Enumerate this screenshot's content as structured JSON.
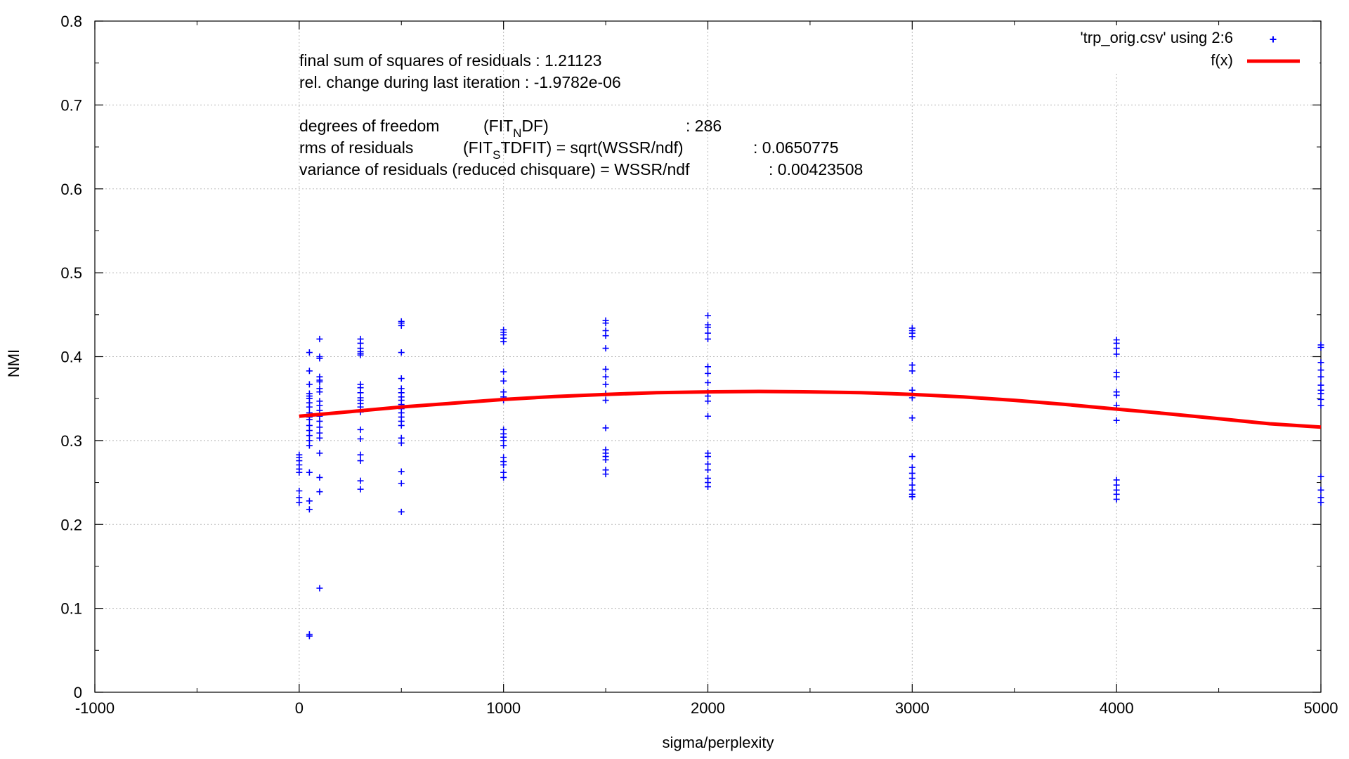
{
  "chart_data": {
    "type": "scatter",
    "xlabel": "sigma/perplexity",
    "ylabel": "NMI",
    "xlim": [
      -1000,
      5000
    ],
    "ylim": [
      0,
      0.8
    ],
    "x_ticks": [
      -1000,
      0,
      1000,
      2000,
      3000,
      4000,
      5000
    ],
    "x_minor_ticks": [
      -500,
      500,
      1500,
      2500,
      3500,
      4500
    ],
    "y_ticks": [
      "0",
      "0.1",
      "0.2",
      "0.3",
      "0.4",
      "0.5",
      "0.6",
      "0.7",
      "0.8"
    ],
    "y_minor_ticks": [
      0.05,
      0.15,
      0.25,
      0.35,
      0.45,
      0.55,
      0.65,
      0.75
    ],
    "grid": true,
    "legend_position": "top-right",
    "fit_info": {
      "line1": "final sum of squares of residuals : 1.21123",
      "line2": "rel. change during last iteration : -1.9782e-06",
      "dof_label": "degrees of freedom",
      "dof_func_main": "(FIT",
      "dof_func_sub": "N",
      "dof_func_rest": "DF)",
      "dof_value": ": 286",
      "rms_label": "rms of residuals",
      "rms_func_main": "(FIT",
      "rms_func_sub": "S",
      "rms_func_rest": "TDFIT) = sqrt(WSSR/ndf)",
      "rms_value": ": 0.0650775",
      "var_line": "variance of residuals (reduced chisquare) = WSSR/ndf",
      "var_value": ": 0.00423508"
    },
    "series": [
      {
        "name": "'trp_orig.csv' using 2:6",
        "color": "#0000ff",
        "marker": "plus",
        "points": [
          [
            0,
            0.283
          ],
          [
            0,
            0.28
          ],
          [
            0,
            0.276
          ],
          [
            0,
            0.271
          ],
          [
            0,
            0.266
          ],
          [
            0,
            0.262
          ],
          [
            0,
            0.24
          ],
          [
            0,
            0.232
          ],
          [
            0,
            0.226
          ],
          [
            50,
            0.405
          ],
          [
            50,
            0.383
          ],
          [
            50,
            0.367
          ],
          [
            50,
            0.356
          ],
          [
            50,
            0.353
          ],
          [
            50,
            0.35
          ],
          [
            50,
            0.345
          ],
          [
            50,
            0.34
          ],
          [
            50,
            0.333
          ],
          [
            50,
            0.328
          ],
          [
            50,
            0.325
          ],
          [
            50,
            0.318
          ],
          [
            50,
            0.312
          ],
          [
            50,
            0.306
          ],
          [
            50,
            0.3
          ],
          [
            50,
            0.294
          ],
          [
            50,
            0.262
          ],
          [
            50,
            0.228
          ],
          [
            50,
            0.218
          ],
          [
            50,
            0.069
          ],
          [
            50,
            0.067
          ],
          [
            100,
            0.421
          ],
          [
            100,
            0.4
          ],
          [
            100,
            0.398
          ],
          [
            100,
            0.376
          ],
          [
            100,
            0.372
          ],
          [
            100,
            0.37
          ],
          [
            100,
            0.362
          ],
          [
            100,
            0.358
          ],
          [
            100,
            0.347
          ],
          [
            100,
            0.342
          ],
          [
            100,
            0.336
          ],
          [
            100,
            0.329
          ],
          [
            100,
            0.323
          ],
          [
            100,
            0.316
          ],
          [
            100,
            0.309
          ],
          [
            100,
            0.303
          ],
          [
            100,
            0.285
          ],
          [
            100,
            0.256
          ],
          [
            100,
            0.239
          ],
          [
            100,
            0.124
          ],
          [
            300,
            0.421
          ],
          [
            300,
            0.416
          ],
          [
            300,
            0.41
          ],
          [
            300,
            0.406
          ],
          [
            300,
            0.404
          ],
          [
            300,
            0.402
          ],
          [
            300,
            0.367
          ],
          [
            300,
            0.363
          ],
          [
            300,
            0.357
          ],
          [
            300,
            0.351
          ],
          [
            300,
            0.348
          ],
          [
            300,
            0.344
          ],
          [
            300,
            0.34
          ],
          [
            300,
            0.334
          ],
          [
            300,
            0.313
          ],
          [
            300,
            0.302
          ],
          [
            300,
            0.283
          ],
          [
            300,
            0.276
          ],
          [
            300,
            0.252
          ],
          [
            300,
            0.242
          ],
          [
            500,
            0.442
          ],
          [
            500,
            0.44
          ],
          [
            500,
            0.437
          ],
          [
            500,
            0.405
          ],
          [
            500,
            0.374
          ],
          [
            500,
            0.362
          ],
          [
            500,
            0.357
          ],
          [
            500,
            0.352
          ],
          [
            500,
            0.348
          ],
          [
            500,
            0.343
          ],
          [
            500,
            0.338
          ],
          [
            500,
            0.333
          ],
          [
            500,
            0.328
          ],
          [
            500,
            0.323
          ],
          [
            500,
            0.318
          ],
          [
            500,
            0.303
          ],
          [
            500,
            0.297
          ],
          [
            500,
            0.263
          ],
          [
            500,
            0.249
          ],
          [
            500,
            0.215
          ],
          [
            1000,
            0.432
          ],
          [
            1000,
            0.429
          ],
          [
            1000,
            0.426
          ],
          [
            1000,
            0.422
          ],
          [
            1000,
            0.418
          ],
          [
            1000,
            0.382
          ],
          [
            1000,
            0.371
          ],
          [
            1000,
            0.358
          ],
          [
            1000,
            0.352
          ],
          [
            1000,
            0.348
          ],
          [
            1000,
            0.313
          ],
          [
            1000,
            0.308
          ],
          [
            1000,
            0.304
          ],
          [
            1000,
            0.3
          ],
          [
            1000,
            0.294
          ],
          [
            1000,
            0.28
          ],
          [
            1000,
            0.275
          ],
          [
            1000,
            0.271
          ],
          [
            1000,
            0.262
          ],
          [
            1000,
            0.256
          ],
          [
            1500,
            0.443
          ],
          [
            1500,
            0.44
          ],
          [
            1500,
            0.431
          ],
          [
            1500,
            0.425
          ],
          [
            1500,
            0.41
          ],
          [
            1500,
            0.385
          ],
          [
            1500,
            0.376
          ],
          [
            1500,
            0.367
          ],
          [
            1500,
            0.356
          ],
          [
            1500,
            0.348
          ],
          [
            1500,
            0.315
          ],
          [
            1500,
            0.289
          ],
          [
            1500,
            0.285
          ],
          [
            1500,
            0.281
          ],
          [
            1500,
            0.277
          ],
          [
            1500,
            0.265
          ],
          [
            1500,
            0.26
          ],
          [
            2000,
            0.449
          ],
          [
            2000,
            0.438
          ],
          [
            2000,
            0.435
          ],
          [
            2000,
            0.428
          ],
          [
            2000,
            0.421
          ],
          [
            2000,
            0.388
          ],
          [
            2000,
            0.38
          ],
          [
            2000,
            0.369
          ],
          [
            2000,
            0.358
          ],
          [
            2000,
            0.353
          ],
          [
            2000,
            0.347
          ],
          [
            2000,
            0.329
          ],
          [
            2000,
            0.285
          ],
          [
            2000,
            0.281
          ],
          [
            2000,
            0.272
          ],
          [
            2000,
            0.265
          ],
          [
            2000,
            0.255
          ],
          [
            2000,
            0.25
          ],
          [
            2000,
            0.245
          ],
          [
            3000,
            0.434
          ],
          [
            3000,
            0.431
          ],
          [
            3000,
            0.428
          ],
          [
            3000,
            0.424
          ],
          [
            3000,
            0.39
          ],
          [
            3000,
            0.383
          ],
          [
            3000,
            0.36
          ],
          [
            3000,
            0.356
          ],
          [
            3000,
            0.351
          ],
          [
            3000,
            0.327
          ],
          [
            3000,
            0.281
          ],
          [
            3000,
            0.268
          ],
          [
            3000,
            0.261
          ],
          [
            3000,
            0.255
          ],
          [
            3000,
            0.247
          ],
          [
            3000,
            0.241
          ],
          [
            3000,
            0.236
          ],
          [
            3000,
            0.233
          ],
          [
            4000,
            0.42
          ],
          [
            4000,
            0.416
          ],
          [
            4000,
            0.41
          ],
          [
            4000,
            0.403
          ],
          [
            4000,
            0.381
          ],
          [
            4000,
            0.376
          ],
          [
            4000,
            0.358
          ],
          [
            4000,
            0.354
          ],
          [
            4000,
            0.342
          ],
          [
            4000,
            0.324
          ],
          [
            4000,
            0.253
          ],
          [
            4000,
            0.247
          ],
          [
            4000,
            0.241
          ],
          [
            4000,
            0.236
          ],
          [
            4000,
            0.23
          ],
          [
            5000,
            0.414
          ],
          [
            5000,
            0.411
          ],
          [
            5000,
            0.393
          ],
          [
            5000,
            0.384
          ],
          [
            5000,
            0.376
          ],
          [
            5000,
            0.366
          ],
          [
            5000,
            0.36
          ],
          [
            5000,
            0.356
          ],
          [
            5000,
            0.349
          ],
          [
            5000,
            0.342
          ],
          [
            5000,
            0.257
          ],
          [
            5000,
            0.241
          ],
          [
            5000,
            0.232
          ],
          [
            5000,
            0.226
          ]
        ]
      },
      {
        "name": "f(x)",
        "color": "#ff0000",
        "marker": "line",
        "x": [
          0,
          250,
          500,
          750,
          1000,
          1250,
          1500,
          1750,
          2000,
          2250,
          2500,
          2750,
          3000,
          3250,
          3500,
          3750,
          4000,
          4250,
          4500,
          4750,
          5000
        ],
        "y": [
          0.329,
          0.3345,
          0.34,
          0.3445,
          0.349,
          0.3525,
          0.355,
          0.357,
          0.358,
          0.3585,
          0.358,
          0.357,
          0.355,
          0.352,
          0.348,
          0.343,
          0.3375,
          0.332,
          0.326,
          0.32,
          0.316
        ]
      }
    ]
  }
}
